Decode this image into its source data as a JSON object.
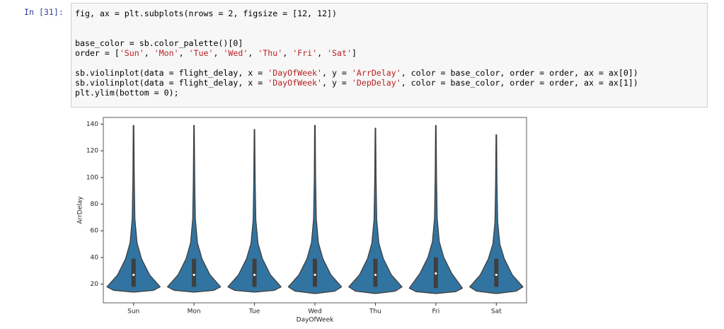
{
  "cell": {
    "prompt": "In [31]:",
    "code": [
      [
        "fig, ax = plt.subplots(nrows = 2, figsize = [12, 12])"
      ],
      [],
      [],
      [
        "base_color = sb.color_palette()[0]"
      ],
      [
        "order = [",
        "'Sun'",
        ", ",
        "'Mon'",
        ", ",
        "'Tue'",
        ", ",
        "'Wed'",
        ", ",
        "'Thu'",
        ", ",
        "'Fri'",
        ", ",
        "'Sat'",
        "]"
      ],
      [],
      [
        "sb.violinplot(data = flight_delay, x = ",
        "'DayOfWeek'",
        ", y = ",
        "'ArrDelay'",
        ", color = base_color, order = order, ax = ax[0])"
      ],
      [
        "sb.violinplot(data = flight_delay, x = ",
        "'DayOfWeek'",
        ", y = ",
        "'DepDelay'",
        ", color = base_color, order = order, ax = ax[1])"
      ],
      [
        "plt.ylim(bottom = 0);"
      ]
    ]
  },
  "chart_data": {
    "type": "violin",
    "xlabel": "DayOfWeek",
    "ylabel": "ArrDelay",
    "categories": [
      "Sun",
      "Mon",
      "Tue",
      "Wed",
      "Thu",
      "Fri",
      "Sat"
    ],
    "min": [
      14,
      14,
      14,
      13,
      13,
      13,
      13
    ],
    "q1": [
      18,
      18,
      18,
      18,
      18,
      17,
      18
    ],
    "median": [
      27,
      27,
      27,
      27,
      27,
      28,
      27
    ],
    "q3": [
      39,
      39,
      39,
      39,
      39,
      40,
      39
    ],
    "max": [
      139,
      139,
      136,
      139,
      137,
      139,
      132
    ],
    "color": "#3274a1",
    "ylim": [
      6,
      145
    ],
    "yticks": [
      20,
      40,
      60,
      80,
      100,
      120,
      140
    ]
  }
}
